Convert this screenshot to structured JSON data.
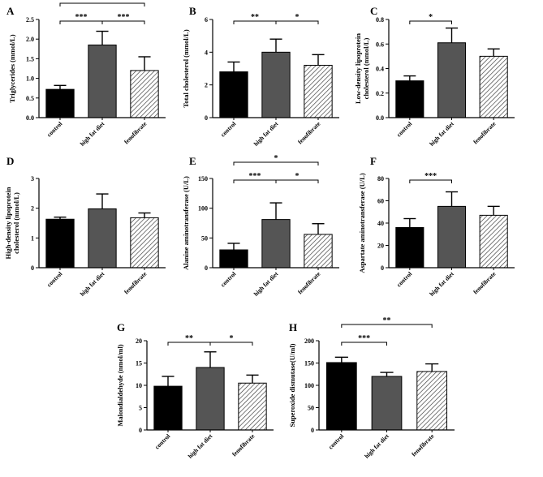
{
  "chart_data": [
    {
      "type": "bar",
      "panel": "A",
      "title": "",
      "xlabel": "",
      "ylabel": "Triglycerides (mmol/L)",
      "categories": [
        "control",
        "high fat diet",
        "fenofibrate"
      ],
      "values": [
        0.72,
        1.85,
        1.2
      ],
      "errors": [
        0.1,
        0.35,
        0.35
      ],
      "ylim": [
        0,
        2.5
      ],
      "yticks": [
        "0.0",
        "0.5",
        "1.0",
        "1.5",
        "2.0",
        "2.5"
      ],
      "ytick_values": [
        0,
        0.5,
        1.0,
        1.5,
        2.0,
        2.5
      ],
      "significance": [
        {
          "from": 0,
          "to": 2,
          "label": "**"
        },
        {
          "from": 0,
          "to": 1,
          "label": "***"
        },
        {
          "from": 1,
          "to": 2,
          "label": "***"
        }
      ]
    },
    {
      "type": "bar",
      "panel": "B",
      "title": "",
      "xlabel": "",
      "ylabel": "Total cholesterol (mmol/L)",
      "categories": [
        "control",
        "high fat diet",
        "fenofibrate"
      ],
      "values": [
        2.8,
        4.0,
        3.2
      ],
      "errors": [
        0.6,
        0.8,
        0.65
      ],
      "ylim": [
        0,
        6
      ],
      "yticks": [
        "0",
        "2",
        "4",
        "6"
      ],
      "ytick_values": [
        0,
        2,
        4,
        6
      ],
      "significance": [
        {
          "from": 0,
          "to": 1,
          "label": "**"
        },
        {
          "from": 1,
          "to": 2,
          "label": "*"
        }
      ]
    },
    {
      "type": "bar",
      "panel": "C",
      "title": "",
      "xlabel": "",
      "ylabel": "Low-density lipoprotein cholesterol (mmol/L)",
      "ylabel_lines": [
        "Low-density lipoprotein",
        "cholesterol (mmol/L)"
      ],
      "categories": [
        "control",
        "high fat diet",
        "fenofibrate"
      ],
      "values": [
        0.3,
        0.61,
        0.5
      ],
      "errors": [
        0.04,
        0.12,
        0.06
      ],
      "ylim": [
        0,
        0.8
      ],
      "yticks": [
        "0.0",
        "0.2",
        "0.4",
        "0.6",
        "0.8"
      ],
      "ytick_values": [
        0,
        0.2,
        0.4,
        0.6,
        0.8
      ],
      "significance": [
        {
          "from": 0,
          "to": 1,
          "label": "*"
        }
      ]
    },
    {
      "type": "bar",
      "panel": "D",
      "title": "",
      "xlabel": "",
      "ylabel": "High-density lipoprotein cholesterol (mmol/L)",
      "ylabel_lines": [
        "High-density lipoprotein",
        "cholesterol (mmol/L)"
      ],
      "categories": [
        "control",
        "high fat diet",
        "fenofibrate"
      ],
      "values": [
        1.63,
        1.98,
        1.68
      ],
      "errors": [
        0.07,
        0.5,
        0.16
      ],
      "ylim": [
        0,
        3
      ],
      "yticks": [
        "0",
        "1",
        "2",
        "3"
      ],
      "ytick_values": [
        0,
        1,
        2,
        3
      ],
      "significance": []
    },
    {
      "type": "bar",
      "panel": "E",
      "title": "",
      "xlabel": "",
      "ylabel": "Alanine aminotransferase (U/L)",
      "categories": [
        "control",
        "high fat diet",
        "fenofibrate"
      ],
      "values": [
        30,
        81,
        56
      ],
      "errors": [
        11,
        28,
        18
      ],
      "ylim": [
        0,
        150
      ],
      "yticks": [
        "0",
        "50",
        "100",
        "150"
      ],
      "ytick_values": [
        0,
        50,
        100,
        150
      ],
      "significance": [
        {
          "from": 0,
          "to": 2,
          "label": "*"
        },
        {
          "from": 0,
          "to": 1,
          "label": "***"
        },
        {
          "from": 1,
          "to": 2,
          "label": "*"
        }
      ]
    },
    {
      "type": "bar",
      "panel": "F",
      "title": "",
      "xlabel": "",
      "ylabel": "Aspartate aminotransferase (U/L)",
      "categories": [
        "control",
        "high fat diet",
        "fenofibrate"
      ],
      "values": [
        36,
        55,
        47
      ],
      "errors": [
        8,
        13,
        8
      ],
      "ylim": [
        0,
        80
      ],
      "yticks": [
        "0",
        "20",
        "40",
        "60",
        "80"
      ],
      "ytick_values": [
        0,
        20,
        40,
        60,
        80
      ],
      "significance": [
        {
          "from": 0,
          "to": 1,
          "label": "***"
        }
      ]
    },
    {
      "type": "bar",
      "panel": "G",
      "title": "",
      "xlabel": "",
      "ylabel": "Malondialdehyde (nmol/ml)",
      "categories": [
        "control",
        "high fat diet",
        "fenofibrate"
      ],
      "values": [
        9.8,
        14,
        10.5
      ],
      "errors": [
        2.2,
        3.5,
        1.8
      ],
      "ylim": [
        0,
        20
      ],
      "yticks": [
        "0",
        "5",
        "10",
        "15",
        "20"
      ],
      "ytick_values": [
        0,
        5,
        10,
        15,
        20
      ],
      "significance": [
        {
          "from": 0,
          "to": 1,
          "label": "**"
        },
        {
          "from": 1,
          "to": 2,
          "label": "*"
        }
      ]
    },
    {
      "type": "bar",
      "panel": "H",
      "title": "",
      "xlabel": "",
      "ylabel": "Superoxide dismutase(U/ml)",
      "categories": [
        "control",
        "high fat diet",
        "fenofibrate"
      ],
      "values": [
        151,
        120,
        131
      ],
      "errors": [
        12,
        9,
        17
      ],
      "ylim": [
        0,
        200
      ],
      "yticks": [
        "0",
        "50",
        "100",
        "150",
        "200"
      ],
      "ytick_values": [
        0,
        50,
        100,
        150,
        200
      ],
      "significance": [
        {
          "from": 0,
          "to": 2,
          "label": "**"
        },
        {
          "from": 0,
          "to": 1,
          "label": "***"
        }
      ]
    }
  ],
  "style": {
    "bar_fills": [
      "#000000",
      "#555555",
      "hatch"
    ],
    "axis_color": "#000000"
  }
}
